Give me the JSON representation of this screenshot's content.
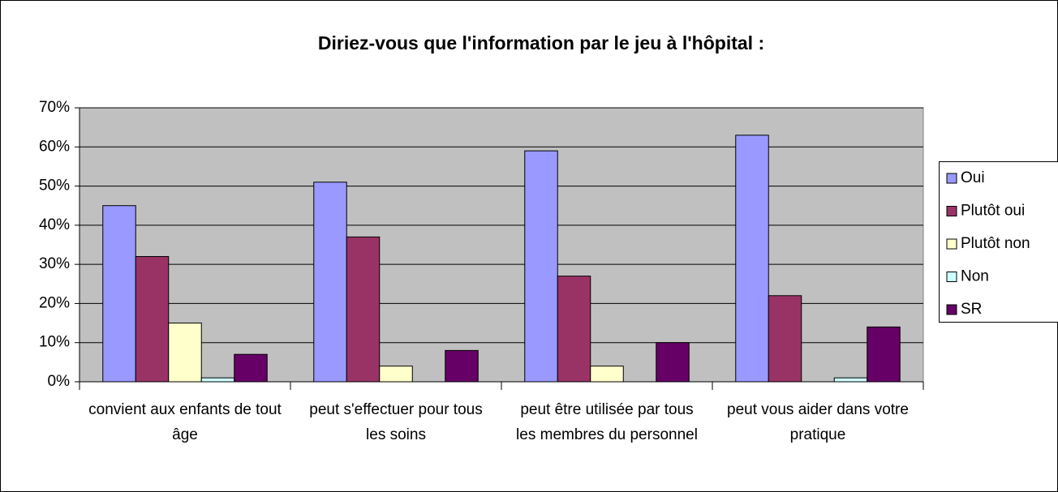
{
  "chart_data": {
    "type": "bar",
    "title": "Diriez-vous que l'information par le jeu à l'hôpital :",
    "categories": [
      "convient aux enfants de tout âge",
      "peut s'effectuer pour tous les soins",
      "peut être utilisée par tous les membres du personnel",
      "peut vous aider dans votre pratique"
    ],
    "series": [
      {
        "name": "Oui",
        "color": "#9999ff",
        "values": [
          45,
          51,
          59,
          63
        ]
      },
      {
        "name": "Plutôt oui",
        "color": "#993366",
        "values": [
          32,
          37,
          27,
          22
        ]
      },
      {
        "name": "Plutôt non",
        "color": "#ffffcc",
        "values": [
          15,
          4,
          4,
          0
        ]
      },
      {
        "name": "Non",
        "color": "#ccffff",
        "values": [
          1,
          0,
          0,
          1
        ]
      },
      {
        "name": "SR",
        "color": "#660066",
        "values": [
          7,
          8,
          10,
          14
        ]
      }
    ],
    "ylim": [
      0,
      70
    ],
    "yticks": [
      {
        "value": 0,
        "label": "0%"
      },
      {
        "value": 10,
        "label": "10%"
      },
      {
        "value": 20,
        "label": "20%"
      },
      {
        "value": 30,
        "label": "30%"
      },
      {
        "value": 40,
        "label": "40%"
      },
      {
        "value": 50,
        "label": "50%"
      },
      {
        "value": 60,
        "label": "60%"
      },
      {
        "value": 70,
        "label": "70%"
      }
    ],
    "grid": true,
    "legend": "right",
    "plot_background": "#c0c0c0"
  }
}
